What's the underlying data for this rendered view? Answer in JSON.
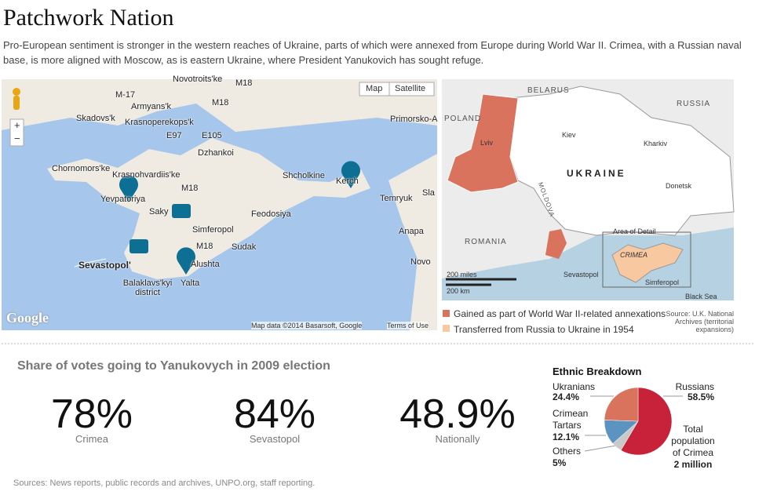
{
  "header": {
    "title": "Patchwork Nation",
    "intro": "Pro-European sentiment is stronger in the western reaches of Ukraine, parts of which were annexed from Europe during World War II. Crimea, with a Russian naval base, is more aligned with Moscow, as is eastern Ukraine, where President Yanukovich has sought refuge."
  },
  "google_map": {
    "buttons": [
      "Map",
      "Satellite"
    ],
    "zoom": [
      "+",
      "−"
    ],
    "labels": [
      "Novotroits'ke",
      "M18",
      "M-17",
      "Armyans'k",
      "Skadovs'k",
      "Krasnoperekops'k",
      "M18",
      "E97",
      "E105",
      "Dzhankoi",
      "Primorsko-A",
      "Chornomors'ke",
      "Krasnohvardiis'ke",
      "Shcholkine",
      "Kerch",
      "Yevpatoriya",
      "Saky",
      "M18",
      "Feodosiya",
      "Temryuk",
      "Sla",
      "Simferopol",
      "Anapa",
      "Sudak",
      "M18",
      "Sevastopol'",
      "Alushta",
      "Novo",
      "Balaklavs'kyi district",
      "Yalta"
    ],
    "logo": "Google",
    "attribution": "Map data ©2014 Basarsoft, Google",
    "terms": "Terms of Use"
  },
  "detail_map": {
    "labels": [
      "BELARUS",
      "RUSSIA",
      "POLAND",
      "Lviv",
      "Kiev",
      "Kharkiv",
      "UKRAINE",
      "Donetsk",
      "MOLDOVA",
      "ROMANIA",
      "Area of Detail",
      "CRIMEA",
      "Sevastopol",
      "Simferopol",
      "Black Sea",
      "200 miles",
      "200 km"
    ],
    "legend": [
      "Gained as part of World War II-related annexations",
      "Transferred from Russia to Ukraine in 1954"
    ],
    "source": "Source: U.K. National Archives (territorial expansions)"
  },
  "stats": {
    "title": "Share of votes going to Yanukovych in 2009 election",
    "items": [
      {
        "value": "78%",
        "label": "Crimea"
      },
      {
        "value": "84%",
        "label": "Sevastopol"
      },
      {
        "value": "48.9%",
        "label": "Nationally"
      }
    ]
  },
  "chart_data": {
    "type": "pie",
    "title": "Ethnic Breakdown",
    "categories": [
      "Russians",
      "Others",
      "Crimean Tartars",
      "Ukranians"
    ],
    "values": [
      58.5,
      5,
      12.1,
      24.4
    ],
    "value_labels": [
      "58.5%",
      "5%",
      "12.1%",
      "24.4%"
    ],
    "colors": [
      "#c8213a",
      "#c9c9c9",
      "#5b93c1",
      "#d9735e"
    ],
    "annotation": "Total population of Crimea",
    "annotation_value": "2 million"
  },
  "sources": "Sources: News reports, public records and archives, UNPO.org, staff reporting."
}
